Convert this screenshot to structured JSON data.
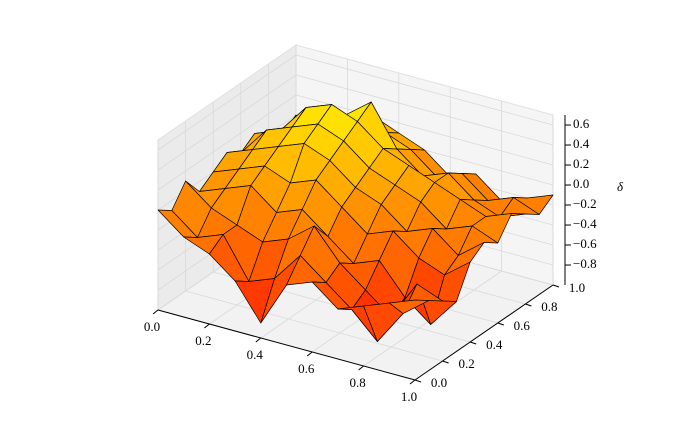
{
  "chart_data": {
    "type": "surface3d",
    "zlabel": "δ",
    "colormap": "autumn",
    "edgecolor": "#000000",
    "x": [
      0.0,
      0.1,
      0.2,
      0.3,
      0.4,
      0.5,
      0.6,
      0.7,
      0.8,
      0.9,
      1.0
    ],
    "y": [
      0.0,
      0.1,
      0.2,
      0.3,
      0.4,
      0.5,
      0.6,
      0.7,
      0.8,
      0.9,
      1.0
    ],
    "z": [
      [
        0.0,
        -0.2,
        -0.3,
        -0.5,
        -0.85,
        -0.4,
        -0.3,
        -0.5,
        -0.4,
        -0.3,
        -0.2
      ],
      [
        -0.1,
        -0.3,
        -0.2,
        -0.6,
        -0.5,
        -0.2,
        -0.4,
        -0.6,
        -0.85,
        -0.5,
        -0.3
      ],
      [
        0.1,
        -0.1,
        -0.2,
        -0.3,
        -0.2,
        0.0,
        -0.3,
        -0.5,
        -0.7,
        -0.3,
        -0.4
      ],
      [
        -0.1,
        0.0,
        0.1,
        -0.1,
        0.0,
        -0.2,
        -0.4,
        -0.3,
        -0.6,
        -0.8,
        -0.5
      ],
      [
        0.0,
        0.1,
        0.2,
        0.1,
        0.2,
        0.0,
        -0.2,
        -0.1,
        -0.3,
        -0.4,
        -0.2
      ],
      [
        0.1,
        0.2,
        0.3,
        0.4,
        0.3,
        0.1,
        0.0,
        -0.2,
        -0.1,
        -0.3,
        -0.1
      ],
      [
        0.0,
        0.3,
        0.4,
        0.5,
        0.4,
        0.2,
        0.1,
        0.0,
        -0.2,
        -0.1,
        -0.2
      ],
      [
        0.1,
        0.2,
        0.5,
        0.6,
        0.5,
        0.3,
        0.2,
        0.1,
        0.0,
        -0.1,
        0.0
      ],
      [
        0.0,
        0.1,
        0.3,
        0.4,
        0.6,
        0.2,
        0.0,
        0.1,
        -0.1,
        -0.2,
        -0.1
      ],
      [
        -0.1,
        0.0,
        0.2,
        0.3,
        0.2,
        0.1,
        -0.1,
        0.0,
        -0.2,
        -0.1,
        -0.2
      ],
      [
        0.0,
        -0.1,
        0.1,
        0.2,
        0.1,
        0.0,
        -0.2,
        -0.1,
        -0.3,
        -0.2,
        -0.1
      ]
    ],
    "xlim": [
      0,
      1
    ],
    "ylim": [
      0,
      1
    ],
    "zlim": [
      -1,
      0.7
    ],
    "xticks": [
      {
        "value": 0,
        "label": "0.0"
      },
      0.2,
      0.4,
      0.6,
      0.8,
      {
        "value": 1,
        "label": "1.0"
      }
    ],
    "yticks": [
      {
        "value": 0,
        "label": "0.0"
      },
      0.2,
      0.4,
      0.6,
      0.8,
      {
        "value": 1,
        "label": "1.0"
      }
    ],
    "zticks": [
      {
        "value": -0.8,
        "label": "−0.8"
      },
      {
        "value": -0.6,
        "label": "−0.6"
      },
      {
        "value": -0.4,
        "label": "−0.4"
      },
      {
        "value": -0.2,
        "label": "−0.2"
      },
      {
        "value": 0,
        "label": "0.0"
      },
      0.2,
      0.4,
      0.6
    ],
    "grid": true
  }
}
